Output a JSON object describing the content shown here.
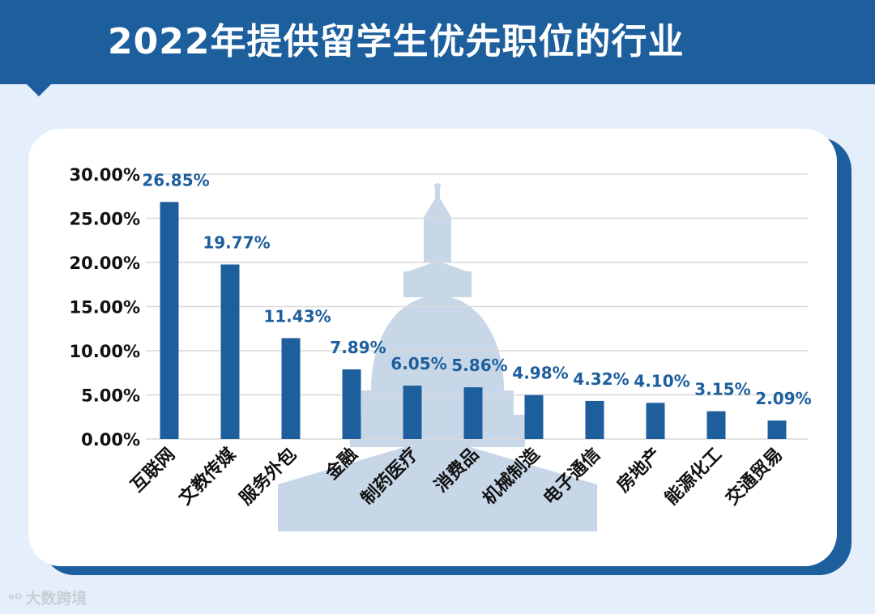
{
  "header": {
    "title": "2022年提供留学生优先职位的行业"
  },
  "watermark": {
    "logo": "ᵒᴼ",
    "text": "大数跨境"
  },
  "colors": {
    "bar": "#1d5f9d",
    "label": "#1d5f9d",
    "grid": "#d9d9d9",
    "header": "#1d5f9d"
  },
  "chart_data": {
    "type": "bar",
    "title": "2022年提供留学生优先职位的行业",
    "categories": [
      "互联网",
      "文教传媒",
      "服务外包",
      "金融",
      "制药医疗",
      "消费品",
      "机械制造",
      "电子通信",
      "房地产",
      "能源化工",
      "交通贸易"
    ],
    "values": [
      26.85,
      19.77,
      11.43,
      7.89,
      6.05,
      5.86,
      4.98,
      4.32,
      4.1,
      3.15,
      2.09
    ],
    "value_labels": [
      "26.85%",
      "19.77%",
      "11.43%",
      "7.89%",
      "6.05%",
      "5.86%",
      "4.98%",
      "4.32%",
      "4.10%",
      "3.15%",
      "2.09%"
    ],
    "y_ticks": [
      0,
      5,
      10,
      15,
      20,
      25,
      30
    ],
    "y_tick_labels": [
      "0.00%",
      "5.00%",
      "10.00%",
      "15.00%",
      "20.00%",
      "25.00%",
      "30.00%"
    ],
    "ylim": [
      0,
      30
    ],
    "xlabel": "",
    "ylabel": "",
    "grid": true
  }
}
